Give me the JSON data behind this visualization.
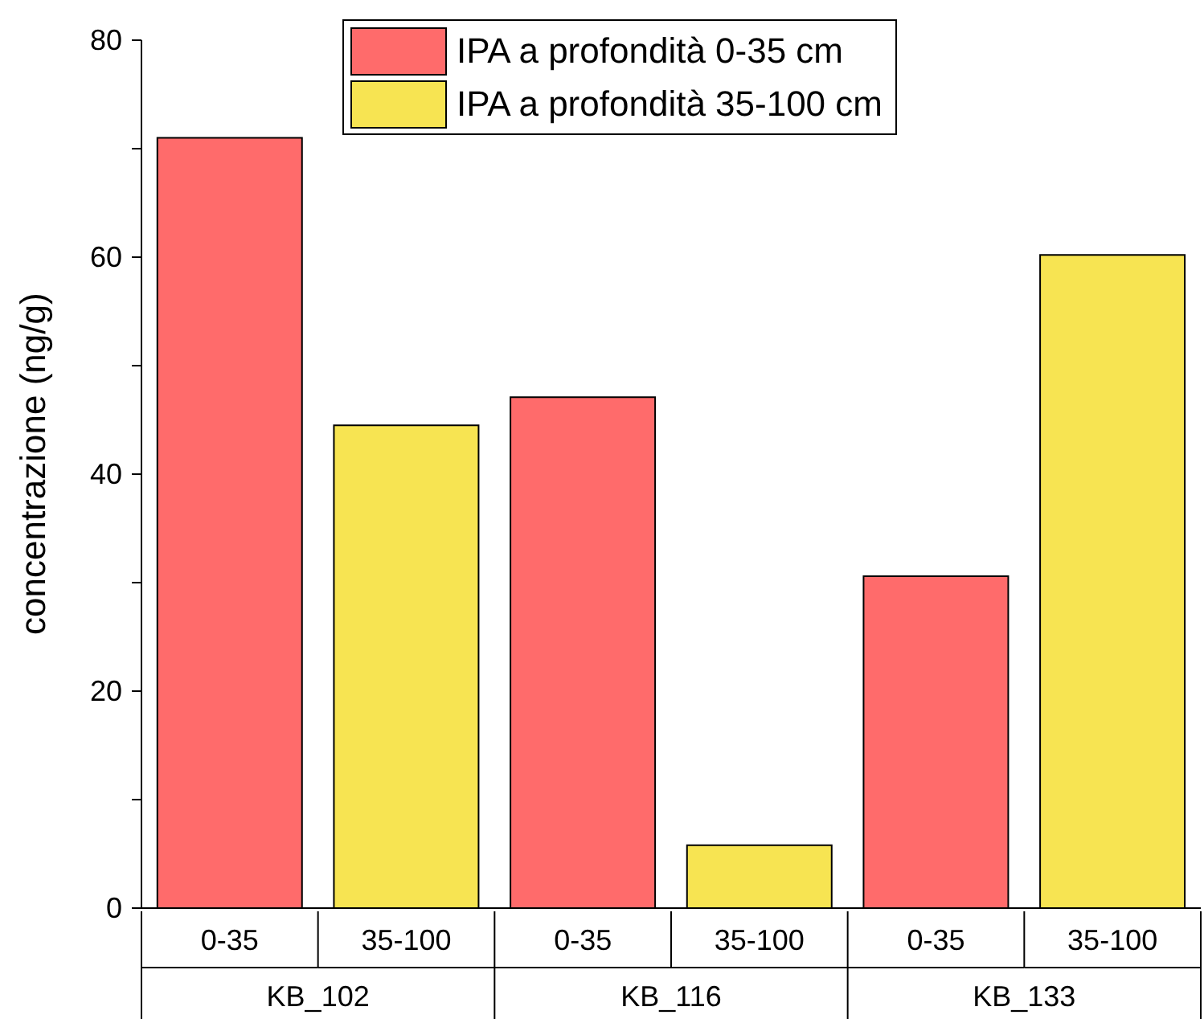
{
  "chart_data": {
    "type": "bar",
    "ylabel": "concentrazione (ng/g)",
    "categories": [
      "0-35",
      "35-100",
      "0-35",
      "35-100",
      "0-35",
      "35-100"
    ],
    "annotations": [
      "KB_102",
      "KB_116",
      "KB_133"
    ],
    "series": [
      {
        "name": "IPA a profondità 0-35 cm",
        "color": "#ff6b6b",
        "values": [
          71,
          null,
          47.1,
          null,
          30.6,
          null
        ]
      },
      {
        "name": "IPA a profondità 35-100 cm",
        "color": "#f7e452",
        "values": [
          null,
          44.5,
          null,
          5.8,
          null,
          60.2
        ]
      }
    ],
    "ylim": [
      0,
      80
    ],
    "yticks": [
      0,
      {
        "value": 10,
        "label": null
      },
      20,
      {
        "value": 30,
        "label": null
      },
      40,
      {
        "value": 50,
        "label": null
      },
      60,
      {
        "value": 70,
        "label": null
      },
      80
    ],
    "legend": "top"
  }
}
